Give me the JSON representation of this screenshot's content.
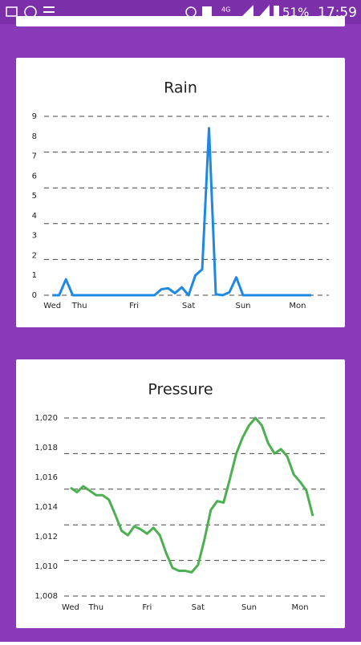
{
  "status": {
    "network": "4G",
    "battery": "51%",
    "time": "17:59"
  },
  "chart_data": [
    {
      "type": "line",
      "title": "Rain",
      "color": "#1e88e5",
      "x": [
        0,
        1,
        2,
        3,
        4,
        5,
        6,
        7,
        8,
        9,
        10,
        11,
        12,
        13,
        14,
        15,
        16,
        17,
        18,
        19,
        20,
        21,
        22,
        23,
        24,
        25,
        26,
        27,
        28,
        29,
        30,
        31,
        32,
        33,
        34,
        35,
        36,
        37,
        38
      ],
      "values": [
        0,
        0,
        0.8,
        0,
        0,
        0,
        0,
        0,
        0,
        0,
        0,
        0,
        0,
        0,
        0,
        0,
        0.3,
        0.35,
        0.1,
        0.4,
        0,
        1.0,
        1.3,
        8.4,
        0.05,
        0,
        0.15,
        0.9,
        0,
        0,
        0,
        0,
        0,
        0,
        0,
        0,
        0,
        0,
        0
      ],
      "xlim": [
        -1.2,
        40.6
      ],
      "xticks": [
        {
          "value": 0,
          "label": "Wed"
        },
        {
          "value": 4,
          "label": "Thu"
        },
        {
          "value": 12,
          "label": "Fri"
        },
        {
          "value": 20,
          "label": "Sat"
        },
        {
          "value": 28,
          "label": "Sun"
        },
        {
          "value": 36,
          "label": "Mon"
        }
      ],
      "ylim": [
        0,
        9
      ],
      "yticks": [
        0,
        1,
        2,
        3,
        4,
        5,
        6,
        7,
        8,
        9
      ],
      "gridlines": [
        0,
        1.8,
        3.6,
        5.4,
        7.2,
        9
      ]
    },
    {
      "type": "line",
      "title": "Pressure",
      "color": "#4caf50",
      "x": [
        0,
        1,
        2,
        3,
        4,
        5,
        6,
        7,
        8,
        9,
        10,
        11,
        12,
        13,
        14,
        15,
        16,
        17,
        18,
        19,
        20,
        21,
        22,
        23,
        24,
        25,
        26,
        27,
        28,
        29,
        30,
        31,
        32,
        33,
        34,
        35,
        36,
        37,
        38
      ],
      "values": [
        1015.3,
        1015.0,
        1015.4,
        1015.1,
        1014.8,
        1014.8,
        1014.5,
        1013.5,
        1012.4,
        1012.1,
        1012.7,
        1012.5,
        1012.2,
        1012.6,
        1012.1,
        1010.9,
        1009.9,
        1009.7,
        1009.7,
        1009.6,
        1010.1,
        1011.8,
        1013.8,
        1014.4,
        1014.3,
        1015.9,
        1017.6,
        1018.7,
        1019.5,
        1020.0,
        1019.5,
        1018.3,
        1017.6,
        1017.9,
        1017.4,
        1016.2,
        1015.7,
        1015.1,
        1013.4
      ],
      "xlim": [
        -1,
        39.9
      ],
      "xticks": [
        {
          "value": 0,
          "label": "Wed"
        },
        {
          "value": 4,
          "label": "Thu"
        },
        {
          "value": 12,
          "label": "Fri"
        },
        {
          "value": 20,
          "label": "Sat"
        },
        {
          "value": 28,
          "label": "Sun"
        },
        {
          "value": 36,
          "label": "Mon"
        }
      ],
      "ylim": [
        1008,
        1020
      ],
      "yticks": [
        {
          "value": 1008,
          "label": "1,008"
        },
        {
          "value": 1010,
          "label": "1,010"
        },
        {
          "value": 1012,
          "label": "1,012"
        },
        {
          "value": 1014,
          "label": "1,014"
        },
        {
          "value": 1016,
          "label": "1,016"
        },
        {
          "value": 1018,
          "label": "1,018"
        },
        {
          "value": 1020,
          "label": "1,020"
        }
      ],
      "gridlines": [
        1008,
        1010.4,
        1012.8,
        1015.2,
        1017.6,
        1020
      ]
    }
  ]
}
